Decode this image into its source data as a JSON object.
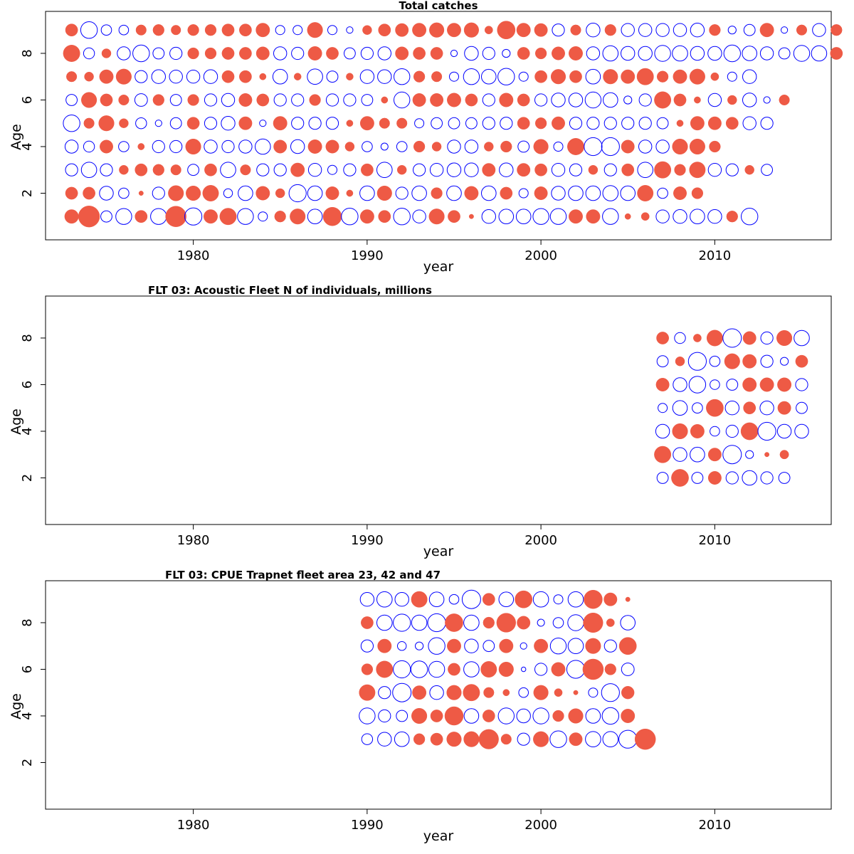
{
  "colors": {
    "positive": "#EE5A45",
    "negative": "#0000FF",
    "axis": "#000000"
  },
  "chart_data": [
    {
      "type": "bubble",
      "title": "Total catches",
      "xlabel": "year",
      "ylabel": "Age",
      "xlim": [
        1971.5,
        2016.7
      ],
      "ylim": [
        0,
        9.8
      ],
      "xticks": [
        1980,
        1990,
        2000,
        2010
      ],
      "yticks": [
        2,
        4,
        6,
        8
      ],
      "x_start": 1973,
      "rows": [
        {
          "age": 9,
          "values": [
            0.35,
            -0.65,
            -0.25,
            -0.22,
            0.25,
            0.3,
            0.22,
            0.3,
            0.3,
            0.35,
            0.35,
            0.45,
            -0.2,
            -0.2,
            0.55,
            -0.2,
            -0.1,
            0.2,
            0.35,
            0.4,
            0.45,
            0.5,
            0.45,
            0.5,
            0.15,
            0.75,
            0.45,
            0.4,
            -0.35,
            0.25,
            -0.45,
            0.3,
            -0.4,
            -0.4,
            -0.4,
            -0.4,
            -0.45,
            0.3,
            -0.15,
            -0.3,
            0.45,
            -0.1,
            0.25,
            -0.4,
            0.3
          ]
        },
        {
          "age": 8,
          "values": [
            0.65,
            -0.28,
            0.2,
            -0.4,
            -0.65,
            -0.3,
            -0.35,
            0.3,
            0.3,
            0.35,
            0.35,
            0.4,
            -0.4,
            -0.35,
            0.45,
            0.35,
            -0.3,
            -0.35,
            -0.4,
            0.4,
            0.35,
            0.35,
            -0.1,
            -0.45,
            -0.35,
            -0.15,
            0.35,
            0.3,
            0.4,
            0.45,
            -0.4,
            -0.55,
            -0.45,
            -0.45,
            -0.6,
            -0.55,
            -0.45,
            -0.45,
            -0.65,
            -0.5,
            -0.4,
            -0.3,
            -0.6,
            -0.55,
            0.35
          ]
        },
        {
          "age": 7,
          "values": [
            0.25,
            0.2,
            0.45,
            0.55,
            -0.35,
            -0.45,
            -0.4,
            -0.4,
            -0.45,
            0.35,
            0.35,
            0.1,
            -0.5,
            0.12,
            -0.55,
            -0.3,
            0.12,
            -0.45,
            -0.45,
            -0.6,
            0.3,
            0.25,
            -0.2,
            -0.6,
            -0.5,
            -0.65,
            -0.2,
            0.35,
            0.5,
            0.35,
            -0.5,
            0.5,
            0.45,
            0.65,
            0.3,
            0.45,
            0.55,
            0.15,
            -0.2,
            -0.45
          ]
        },
        {
          "age": 6,
          "values": [
            -0.3,
            0.55,
            0.35,
            0.25,
            -0.38,
            0.3,
            -0.3,
            0.3,
            -0.35,
            -0.4,
            0.4,
            0.35,
            -0.35,
            -0.35,
            0.3,
            -0.35,
            -0.35,
            -0.3,
            0.1,
            -0.6,
            0.4,
            0.4,
            0.45,
            0.35,
            -0.35,
            0.45,
            0.35,
            -0.35,
            -0.45,
            -0.45,
            -0.6,
            -0.5,
            -0.15,
            -0.35,
            0.65,
            0.35,
            0.1,
            -0.4,
            0.2,
            -0.45,
            -0.1,
            0.25
          ]
        },
        {
          "age": 5,
          "values": [
            -0.65,
            0.25,
            0.55,
            0.2,
            -0.28,
            -0.1,
            -0.3,
            0.35,
            -0.35,
            -0.45,
            0.4,
            -0.1,
            0.45,
            -0.35,
            -0.35,
            -0.35,
            0.1,
            0.45,
            0.25,
            0.25,
            -0.2,
            -0.3,
            -0.3,
            -0.3,
            -0.35,
            -0.35,
            0.35,
            0.3,
            0.4,
            -0.35,
            -0.35,
            -0.35,
            -0.35,
            -0.35,
            -0.3,
            0.1,
            0.45,
            0.4,
            0.35,
            -0.4,
            -0.35
          ]
        },
        {
          "age": 4,
          "values": [
            -0.4,
            -0.28,
            0.4,
            -0.25,
            0.1,
            -0.35,
            -0.35,
            0.55,
            -0.4,
            -0.35,
            -0.4,
            -0.55,
            0.4,
            -0.45,
            0.45,
            0.4,
            0.2,
            -0.25,
            -0.12,
            -0.25,
            0.3,
            0.2,
            -0.4,
            -0.4,
            0.2,
            0.3,
            -0.3,
            0.5,
            -0.2,
            0.65,
            -0.75,
            -0.75,
            0.4,
            -0.4,
            -0.4,
            0.55,
            0.55,
            0.3
          ]
        },
        {
          "age": 3,
          "values": [
            -0.35,
            -0.55,
            -0.35,
            0.2,
            0.35,
            0.3,
            0.25,
            -0.3,
            0.35,
            -0.55,
            0.25,
            -0.35,
            -0.35,
            0.45,
            -0.4,
            -0.2,
            -0.35,
            0.35,
            -0.55,
            0.2,
            -0.35,
            -0.4,
            -0.45,
            -0.45,
            0.4,
            -0.45,
            0.4,
            0.35,
            -0.4,
            -0.35,
            0.2,
            -0.35,
            0.35,
            -0.55,
            0.65,
            0.3,
            0.6,
            -0.4,
            -0.35,
            0.2,
            -0.3
          ]
        },
        {
          "age": 2,
          "values": [
            0.35,
            0.35,
            -0.45,
            -0.25,
            0.05,
            -0.35,
            0.55,
            0.5,
            0.6,
            -0.18,
            -0.5,
            0.45,
            0.2,
            -0.7,
            -0.5,
            0.4,
            0.1,
            -0.5,
            0.5,
            -0.35,
            -0.5,
            0.3,
            -0.5,
            0.45,
            -0.5,
            0.35,
            -0.2,
            0.4,
            -0.45,
            -0.5,
            -0.5,
            -0.55,
            -0.5,
            0.6,
            -0.25,
            0.4,
            0.3
          ]
        },
        {
          "age": 1,
          "values": [
            0.45,
            1.05,
            -0.3,
            -0.6,
            0.35,
            -0.6,
            1.0,
            -0.7,
            0.45,
            0.65,
            -0.6,
            -0.2,
            0.3,
            0.55,
            -0.5,
            0.8,
            -0.65,
            0.45,
            0.35,
            -0.65,
            -0.4,
            0.55,
            0.35,
            0.05,
            -0.45,
            -0.5,
            -0.5,
            -0.6,
            -0.6,
            0.45,
            0.45,
            -0.6,
            0.08,
            0.15,
            -0.4,
            -0.45,
            -0.5,
            -0.45,
            0.3,
            -0.65
          ]
        }
      ]
    },
    {
      "type": "bubble",
      "title": "FLT 03: Acoustic Fleet   N of individuals, millions",
      "xlabel": "year",
      "ylabel": "Age",
      "xlim": [
        1971.5,
        2016.7
      ],
      "ylim": [
        0,
        9.8
      ],
      "xticks": [
        1980,
        1990,
        2000,
        2010
      ],
      "yticks": [
        2,
        4,
        6,
        8
      ],
      "x_start": 2007,
      "rows": [
        {
          "age": 8,
          "values": [
            0.35,
            -0.28,
            0.15,
            0.6,
            -0.8,
            0.4,
            -0.35,
            0.55,
            -0.55
          ]
        },
        {
          "age": 7,
          "values": [
            -0.3,
            0.2,
            -0.75,
            -0.25,
            0.55,
            0.45,
            -0.35,
            -0.15,
            0.35
          ]
        },
        {
          "age": 6,
          "values": [
            0.4,
            -0.45,
            -0.65,
            -0.22,
            -0.3,
            0.45,
            0.45,
            0.45,
            -0.35
          ]
        },
        {
          "age": 5,
          "values": [
            -0.2,
            -0.5,
            -0.25,
            0.7,
            -0.45,
            0.35,
            -0.45,
            0.4,
            -0.3
          ]
        },
        {
          "age": 4,
          "values": [
            -0.45,
            0.55,
            0.45,
            -0.22,
            -0.35,
            0.7,
            -0.75,
            -0.45,
            -0.45
          ]
        },
        {
          "age": 3,
          "values": [
            0.65,
            -0.45,
            -0.5,
            0.4,
            -0.8,
            -0.15,
            0.05,
            0.18
          ]
        },
        {
          "age": 2,
          "values": [
            -0.3,
            0.7,
            -0.3,
            0.4,
            -0.35,
            -0.5,
            -0.35,
            -0.3
          ]
        }
      ]
    },
    {
      "type": "bubble",
      "title": "FLT 03: CPUE Trapnet fleet area 23, 42 and 47",
      "xlabel": "year",
      "ylabel": "Age",
      "xlim": [
        1971.5,
        2016.7
      ],
      "ylim": [
        0,
        9.8
      ],
      "xticks": [
        1980,
        1990,
        2000,
        2010
      ],
      "yticks": [
        2,
        4,
        6,
        8
      ],
      "x_start": 1990,
      "rows": [
        {
          "age": 9,
          "values": [
            -0.45,
            -0.55,
            -0.45,
            0.6,
            -0.5,
            -0.22,
            -0.8,
            0.35,
            -0.5,
            0.7,
            -0.55,
            -0.2,
            -0.55,
            0.8,
            0.4,
            0.05
          ]
        },
        {
          "age": 8,
          "values": [
            0.35,
            -0.55,
            -0.7,
            -0.55,
            -0.75,
            0.75,
            -0.55,
            0.3,
            0.85,
            0.4,
            -0.12,
            -0.25,
            -0.6,
            0.9,
            0.15,
            -0.5
          ]
        },
        {
          "age": 7,
          "values": [
            -0.35,
            0.45,
            -0.18,
            -0.15,
            -0.65,
            0.45,
            -0.45,
            -0.3,
            0.45,
            -0.1,
            0.45,
            -0.6,
            -0.55,
            0.55,
            -0.35,
            0.7
          ]
        },
        {
          "age": 6,
          "values": [
            0.3,
            0.65,
            -0.7,
            -0.65,
            -0.6,
            0.35,
            -0.55,
            0.6,
            0.5,
            -0.05,
            -0.35,
            0.45,
            -0.75,
            1.0,
            0.3,
            -0.38
          ]
        },
        {
          "age": 5,
          "values": [
            0.6,
            -0.35,
            -0.8,
            0.45,
            -0.45,
            0.5,
            0.65,
            0.25,
            0.1,
            -0.22,
            0.5,
            0.15,
            0.05,
            -0.2,
            -0.75,
            0.38
          ]
        },
        {
          "age": 4,
          "values": [
            -0.6,
            -0.35,
            -0.3,
            0.55,
            0.35,
            0.8,
            -0.5,
            0.35,
            -0.6,
            -0.45,
            -0.6,
            0.3,
            0.5,
            -0.5,
            -0.65,
            0.45
          ]
        },
        {
          "age": 3,
          "values": [
            -0.28,
            -0.45,
            -0.5,
            0.3,
            0.35,
            0.5,
            0.55,
            0.9,
            0.25,
            -0.35,
            0.55,
            -0.65,
            0.4,
            -0.55,
            -0.55,
            -0.75,
            1.0
          ]
        }
      ]
    }
  ]
}
